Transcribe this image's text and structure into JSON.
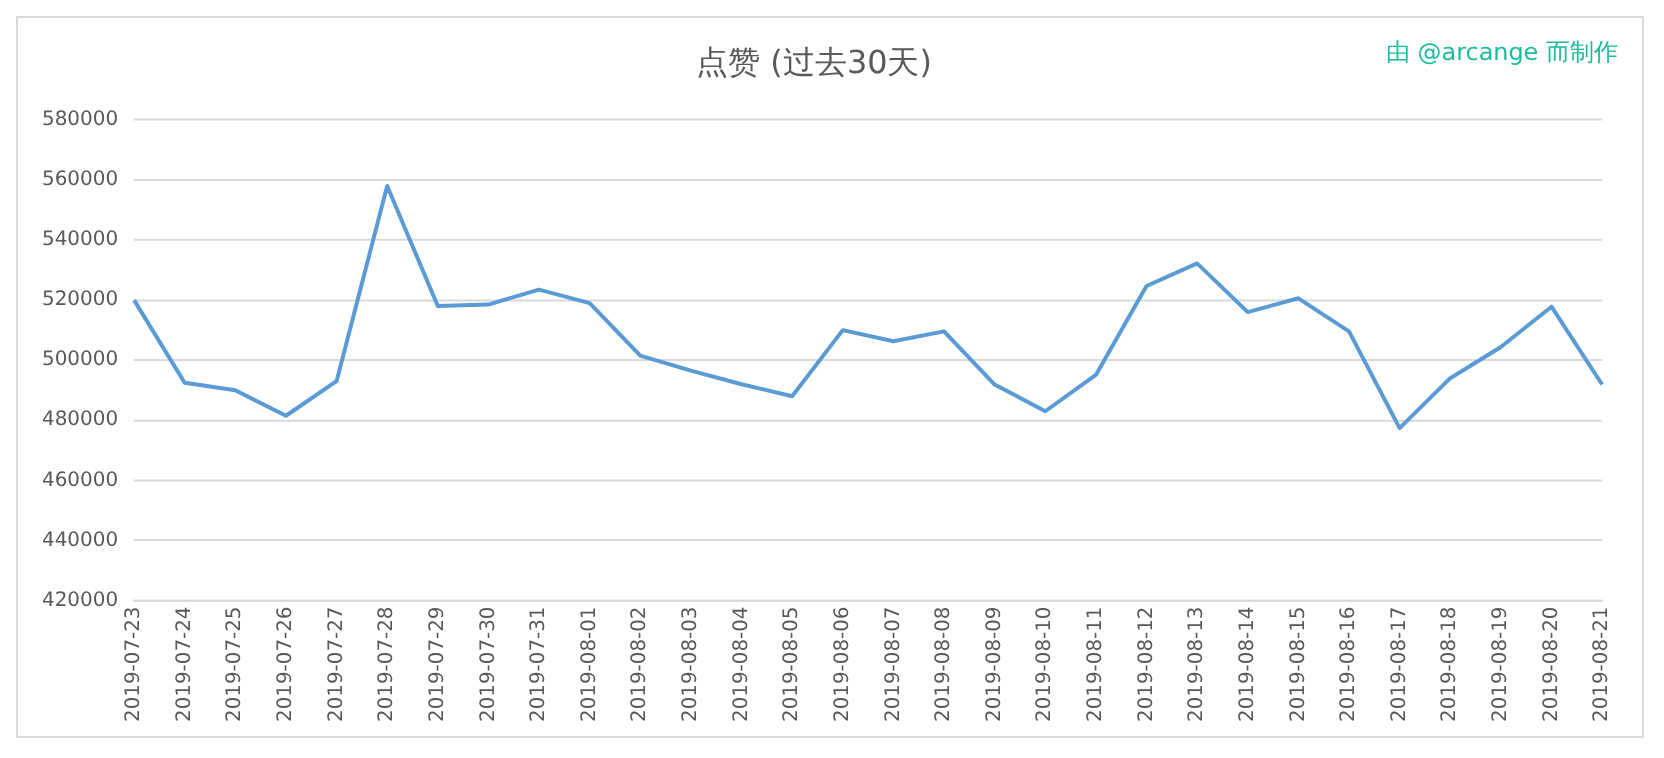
{
  "chart_data": {
    "type": "line",
    "title": "点赞 (过去30天)",
    "annotations": [
      "由 @arcange 而制作"
    ],
    "categories": [
      "2019-07-23",
      "2019-07-24",
      "2019-07-25",
      "2019-07-26",
      "2019-07-27",
      "2019-07-28",
      "2019-07-29",
      "2019-07-30",
      "2019-07-31",
      "2019-08-01",
      "2019-08-02",
      "2019-08-03",
      "2019-08-04",
      "2019-08-05",
      "2019-08-06",
      "2019-08-07",
      "2019-08-08",
      "2019-08-09",
      "2019-08-10",
      "2019-08-11",
      "2019-08-12",
      "2019-08-13",
      "2019-08-14",
      "2019-08-15",
      "2019-08-16",
      "2019-08-17",
      "2019-08-18",
      "2019-08-19",
      "2019-08-20",
      "2019-08-21"
    ],
    "series": [
      {
        "color": "#5b9bd5",
        "values": [
          520000,
          492500,
          490000,
          481500,
          493000,
          558000,
          518000,
          518500,
          523500,
          519000,
          501500,
          496500,
          492000,
          488000,
          510000,
          506300,
          509600,
          491900,
          483000,
          495100,
          524700,
          532200,
          516000,
          520600,
          509600,
          477400,
          494000,
          504400,
          517800,
          491900
        ]
      }
    ],
    "ylim": [
      420000,
      580000
    ],
    "yticks": [
      420000,
      440000,
      460000,
      480000,
      500000,
      520000,
      540000,
      560000,
      580000
    ],
    "grid": "y",
    "legend": false,
    "marker": "none",
    "line_style": "solid"
  }
}
